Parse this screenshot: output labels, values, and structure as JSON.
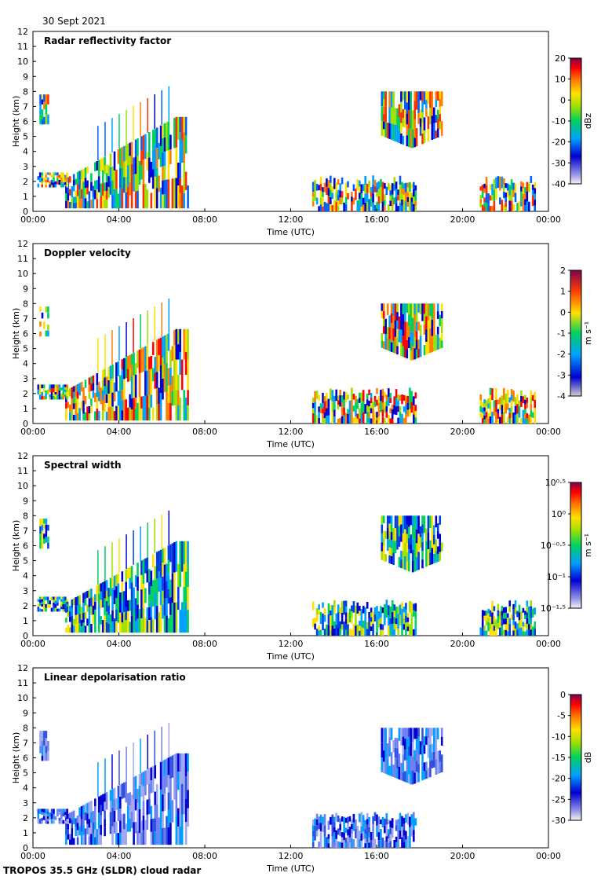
{
  "header": {
    "date": "30 Sept 2021"
  },
  "footer": {
    "instrument": "TROPOS 35.5 GHz (SLDR) cloud radar"
  },
  "chart_data": [
    {
      "type": "heatmap",
      "title": "Radar reflectivity factor",
      "xlabel": "Time (UTC)",
      "ylabel": "Height (km)",
      "xticks": [
        "00:00",
        "04:00",
        "08:00",
        "12:00",
        "16:00",
        "20:00",
        "00:00"
      ],
      "ylim": [
        0,
        12
      ],
      "yticks": [
        "0",
        "1",
        "2",
        "3",
        "4",
        "5",
        "6",
        "7",
        "8",
        "9",
        "10",
        "11",
        "12"
      ],
      "colorbar": {
        "label": "dBz",
        "ticks": [
          "20",
          "10",
          "0",
          "-10",
          "-20",
          "-30",
          "-40"
        ],
        "range": [
          -40,
          20
        ]
      }
    },
    {
      "type": "heatmap",
      "title": "Doppler velocity",
      "xlabel": "Time (UTC)",
      "ylabel": "Height (km)",
      "xticks": [
        "00:00",
        "04:00",
        "08:00",
        "12:00",
        "16:00",
        "20:00",
        "00:00"
      ],
      "ylim": [
        0,
        12
      ],
      "yticks": [
        "0",
        "1",
        "2",
        "3",
        "4",
        "5",
        "6",
        "7",
        "8",
        "9",
        "10",
        "11",
        "12"
      ],
      "colorbar": {
        "label": "m s⁻¹",
        "ticks": [
          "2",
          "1",
          "0",
          "-1",
          "-2",
          "-3",
          "-4"
        ],
        "range": [
          -4,
          2
        ]
      }
    },
    {
      "type": "heatmap",
      "title": "Spectral width",
      "xlabel": "Time (UTC)",
      "ylabel": "Height (km)",
      "xticks": [
        "00:00",
        "04:00",
        "08:00",
        "12:00",
        "16:00",
        "20:00",
        "00:00"
      ],
      "ylim": [
        0,
        12
      ],
      "yticks": [
        "0",
        "1",
        "2",
        "3",
        "4",
        "5",
        "6",
        "7",
        "8",
        "9",
        "10",
        "11",
        "12"
      ],
      "colorbar": {
        "label": "m s⁻¹",
        "ticks": [
          "10⁰·⁵",
          "10⁰",
          "10⁻⁰·⁵",
          "10⁻¹",
          "10⁻¹·⁵"
        ],
        "range": [
          -1.5,
          0.5
        ]
      }
    },
    {
      "type": "heatmap",
      "title": "Linear depolarisation ratio",
      "xlabel": "Time (UTC)",
      "ylabel": "Height (km)",
      "xticks": [
        "00:00",
        "04:00",
        "08:00",
        "12:00",
        "16:00",
        "20:00",
        "00:00"
      ],
      "ylim": [
        0,
        12
      ],
      "yticks": [
        "0",
        "1",
        "2",
        "3",
        "4",
        "5",
        "6",
        "7",
        "8",
        "9",
        "10",
        "11",
        "12"
      ],
      "colorbar": {
        "label": "dB",
        "ticks": [
          "0",
          "-5",
          "-10",
          "-15",
          "-20",
          "-25",
          "-30"
        ],
        "range": [
          -30,
          0
        ]
      }
    }
  ]
}
